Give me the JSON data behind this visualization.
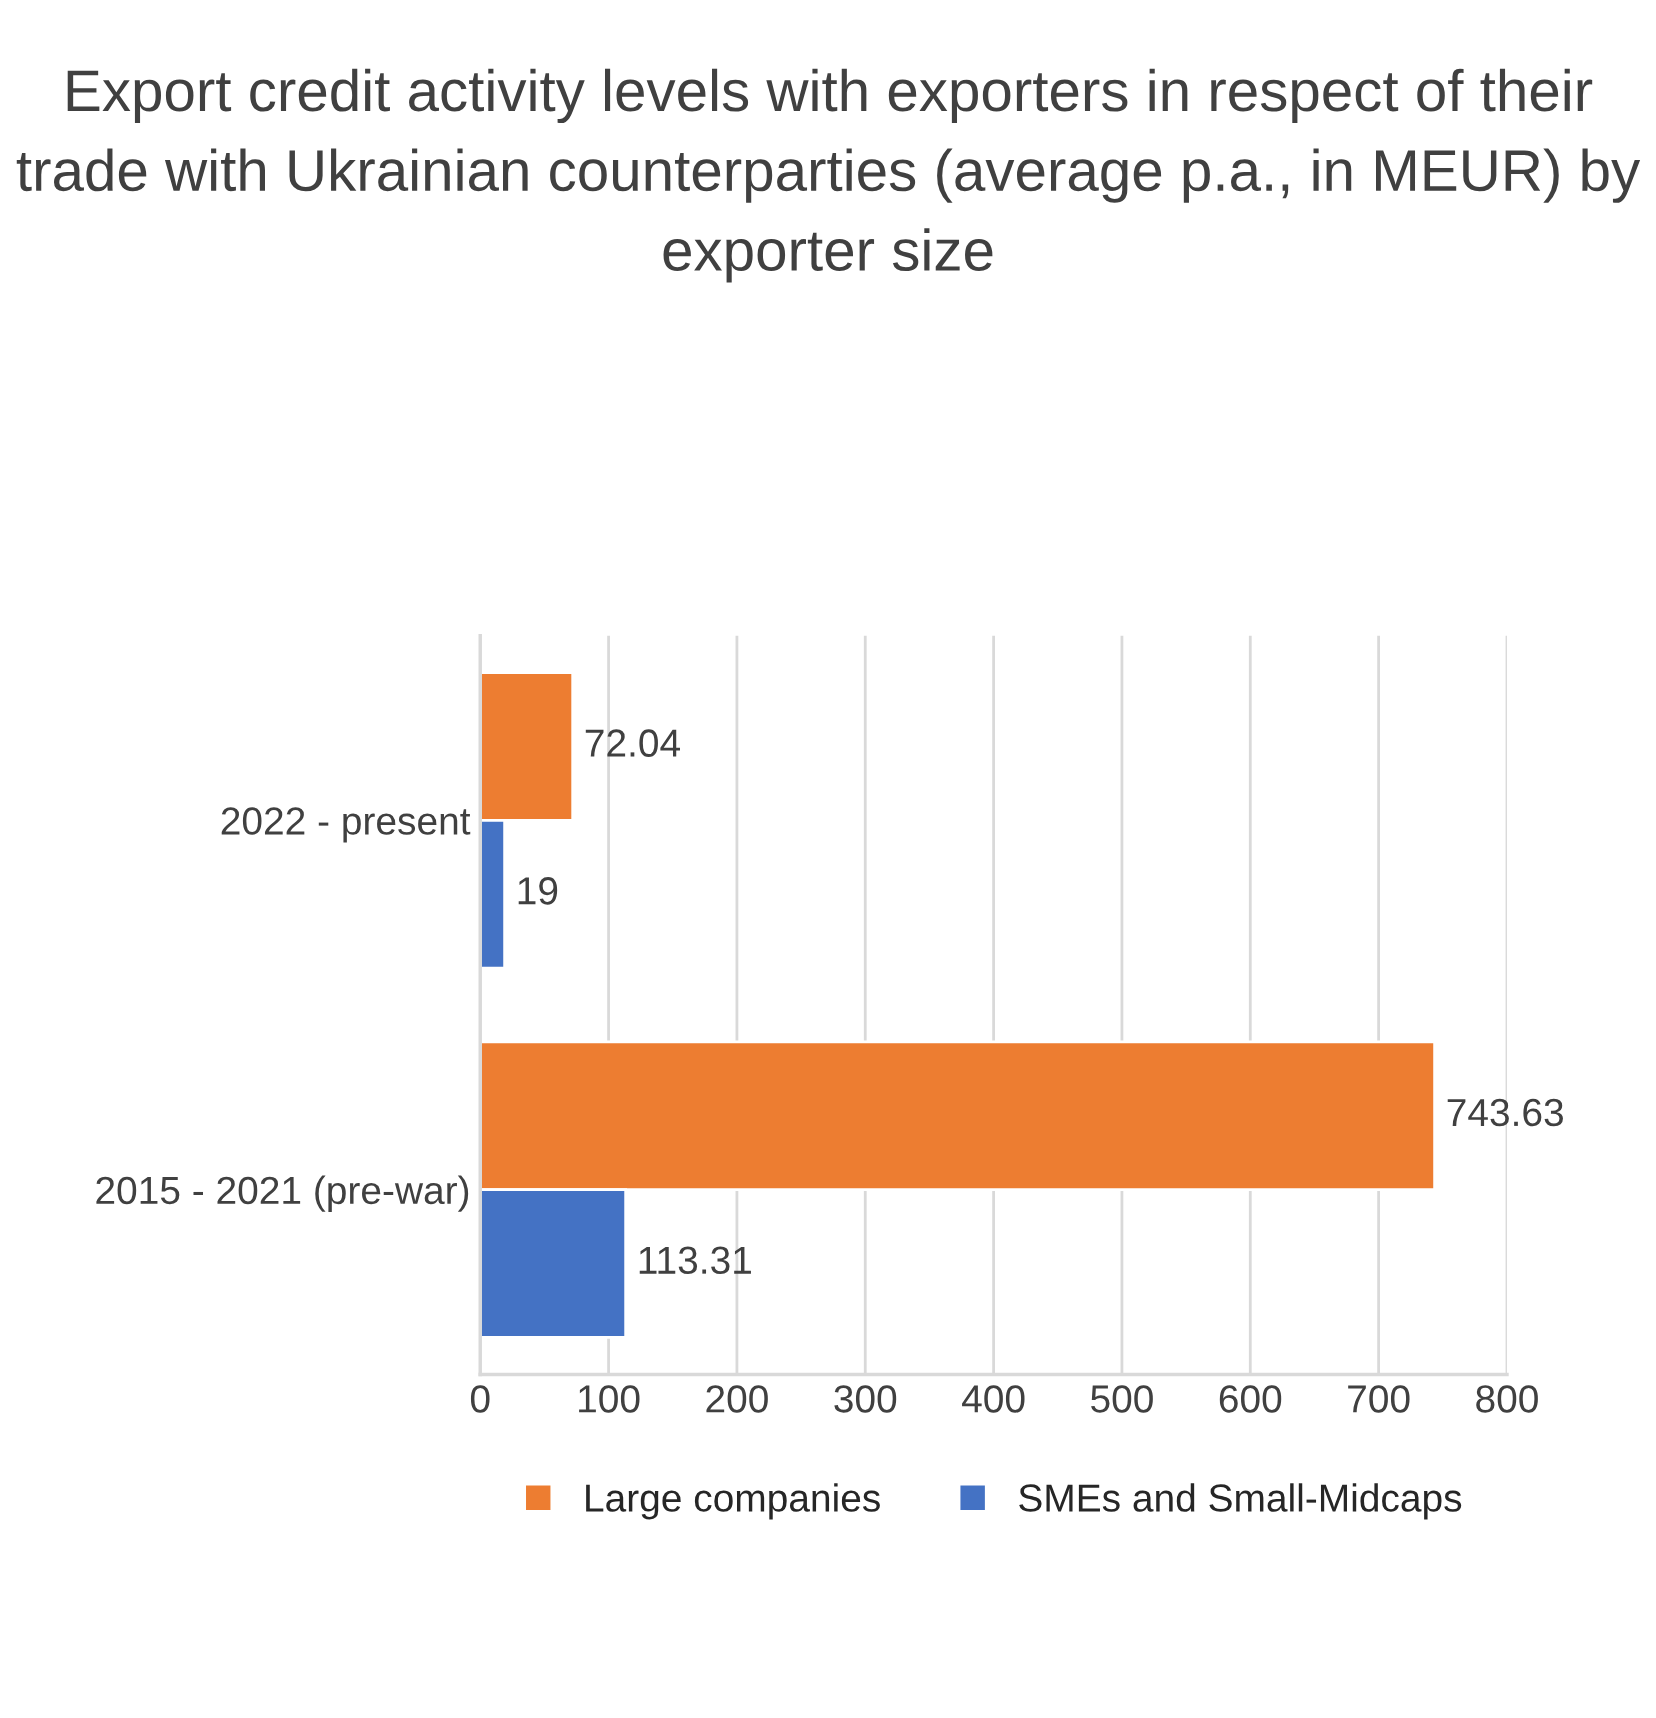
{
  "chart_data": {
    "type": "bar",
    "orientation": "horizontal",
    "title": "Export credit activity levels with exporters in respect of their trade with Ukrainian counterparties (average p.a., in MEUR) by exporter size",
    "categories": [
      "2022 - present",
      "2015 - 2021 (pre-war)"
    ],
    "series": [
      {
        "name": "Large companies",
        "color": "#ed7d31",
        "values": [
          72.04,
          743.63
        ]
      },
      {
        "name": "SMEs and Small-Midcaps",
        "color": "#4472c4",
        "values": [
          19,
          113.31
        ]
      }
    ],
    "xlim": [
      0,
      800
    ],
    "xticks": [
      0,
      100,
      200,
      300,
      400,
      500,
      600,
      700,
      800
    ],
    "grid": "x",
    "legend": "bottom",
    "data_labels": true
  }
}
